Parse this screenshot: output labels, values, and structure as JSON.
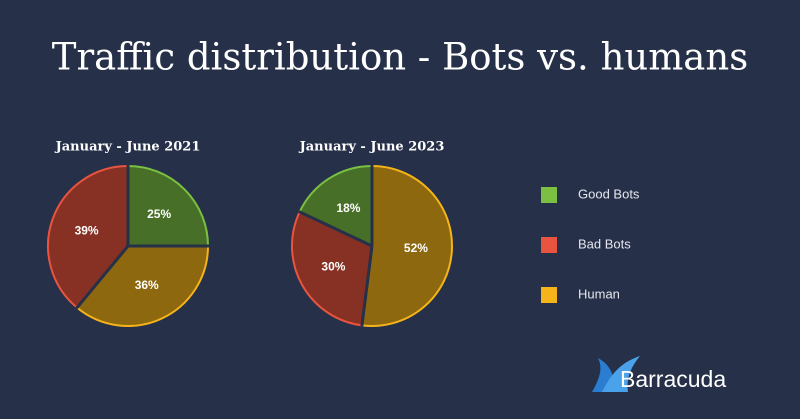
{
  "title": "Traffic distribution - Bots vs. humans",
  "categories": [
    "Good Bots",
    "Bad Bots",
    "Human"
  ],
  "colors": [
    "#7bc043",
    "#e8543f",
    "#f4b41a"
  ],
  "brand": "Barracuda",
  "chart_data": [
    {
      "type": "pie",
      "title": "January - June 2021",
      "values": [
        25,
        39,
        36
      ],
      "value_labels": [
        "25%",
        "39%",
        "36%"
      ]
    },
    {
      "type": "pie",
      "title": "January - June 2023",
      "values": [
        18,
        30,
        52
      ],
      "value_labels": [
        "18%",
        "30%",
        "52%"
      ]
    }
  ]
}
